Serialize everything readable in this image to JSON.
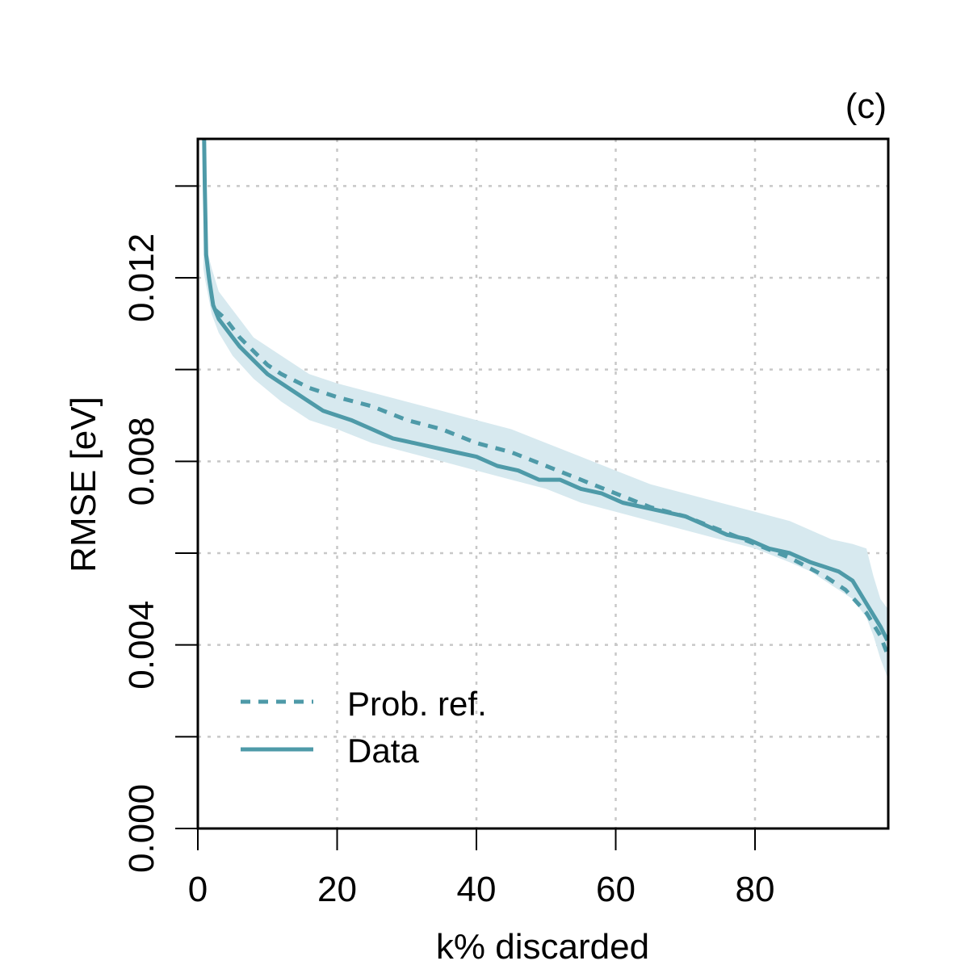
{
  "panel_label": "(c)",
  "chart_data": {
    "type": "line",
    "title": "",
    "xlabel": "k% discarded",
    "ylabel": "RMSE [eV]",
    "xlim": [
      0,
      99
    ],
    "ylim": [
      0.0,
      0.015
    ],
    "x_ticks": [
      0,
      20,
      40,
      60,
      80
    ],
    "x_tick_labels": [
      "0",
      "20",
      "40",
      "60",
      "80"
    ],
    "y_ticks": [
      0.0,
      0.002,
      0.004,
      0.006,
      0.008,
      0.01,
      0.012,
      0.014
    ],
    "y_tick_labels": [
      "0.000",
      "",
      "0.004",
      "",
      "0.008",
      "",
      "0.012",
      ""
    ],
    "grid": true,
    "legend": {
      "position": "bottom-left"
    },
    "colors": {
      "line": "#4e9aa8",
      "band": "#d7e9ef",
      "grid": "#c8c8c8"
    },
    "band": {
      "name": "Prob. ref. interval",
      "x": [
        0.8,
        1,
        2,
        3,
        5,
        8,
        12,
        16,
        20,
        25,
        30,
        35,
        40,
        45,
        50,
        55,
        60,
        65,
        70,
        75,
        80,
        85,
        88,
        91,
        94,
        96,
        97,
        98,
        99
      ],
      "lower": [
        0.0122,
        0.012,
        0.0112,
        0.0108,
        0.0103,
        0.0098,
        0.0093,
        0.0089,
        0.0087,
        0.0084,
        0.0082,
        0.008,
        0.0078,
        0.0076,
        0.0074,
        0.0071,
        0.0069,
        0.0067,
        0.0065,
        0.0063,
        0.0061,
        0.0058,
        0.0056,
        0.0053,
        0.005,
        0.0046,
        0.0042,
        0.0037,
        0.0033
      ],
      "upper": [
        0.0135,
        0.0128,
        0.0122,
        0.0117,
        0.0113,
        0.0107,
        0.0103,
        0.0099,
        0.0097,
        0.0095,
        0.0093,
        0.0091,
        0.0089,
        0.0087,
        0.0084,
        0.0081,
        0.0078,
        0.0075,
        0.0073,
        0.0071,
        0.0069,
        0.0067,
        0.0065,
        0.0063,
        0.0062,
        0.0061,
        0.0055,
        0.005,
        0.0048
      ]
    },
    "series": [
      {
        "name": "Prob. ref.",
        "style": "dashed",
        "x": [
          2.5,
          4,
          6,
          8,
          10,
          12,
          16,
          20,
          25,
          30,
          35,
          40,
          45,
          50,
          55,
          60,
          65,
          70,
          75,
          80,
          85,
          90,
          93,
          96,
          98,
          99
        ],
        "values": [
          0.0113,
          0.0111,
          0.0107,
          0.0104,
          0.0101,
          0.0099,
          0.0096,
          0.0094,
          0.0092,
          0.0089,
          0.0087,
          0.0084,
          0.0082,
          0.0079,
          0.0076,
          0.0073,
          0.007,
          0.0068,
          0.0065,
          0.0062,
          0.0059,
          0.0055,
          0.0052,
          0.0047,
          0.0042,
          0.0038
        ]
      },
      {
        "name": "Data",
        "style": "solid",
        "x": [
          0.9,
          1.0,
          1.2,
          1.6,
          2.2,
          3,
          4,
          5,
          6,
          8,
          10,
          12,
          14,
          16,
          18,
          20,
          22,
          25,
          28,
          31,
          34,
          37,
          40,
          43,
          46,
          49,
          52,
          55,
          58,
          61,
          64,
          67,
          70,
          73,
          76,
          79,
          82,
          85,
          88,
          90,
          92,
          94,
          96,
          98,
          99
        ],
        "values": [
          0.015,
          0.014,
          0.0125,
          0.012,
          0.0114,
          0.0111,
          0.0109,
          0.0107,
          0.0105,
          0.0102,
          0.0099,
          0.0097,
          0.0095,
          0.0093,
          0.0091,
          0.009,
          0.0089,
          0.0087,
          0.0085,
          0.0084,
          0.0083,
          0.0082,
          0.0081,
          0.0079,
          0.0078,
          0.0076,
          0.0076,
          0.0074,
          0.0073,
          0.0071,
          0.007,
          0.0069,
          0.0068,
          0.0066,
          0.0064,
          0.0063,
          0.0061,
          0.006,
          0.0058,
          0.0057,
          0.0056,
          0.0054,
          0.0049,
          0.0044,
          0.0041
        ]
      }
    ]
  }
}
